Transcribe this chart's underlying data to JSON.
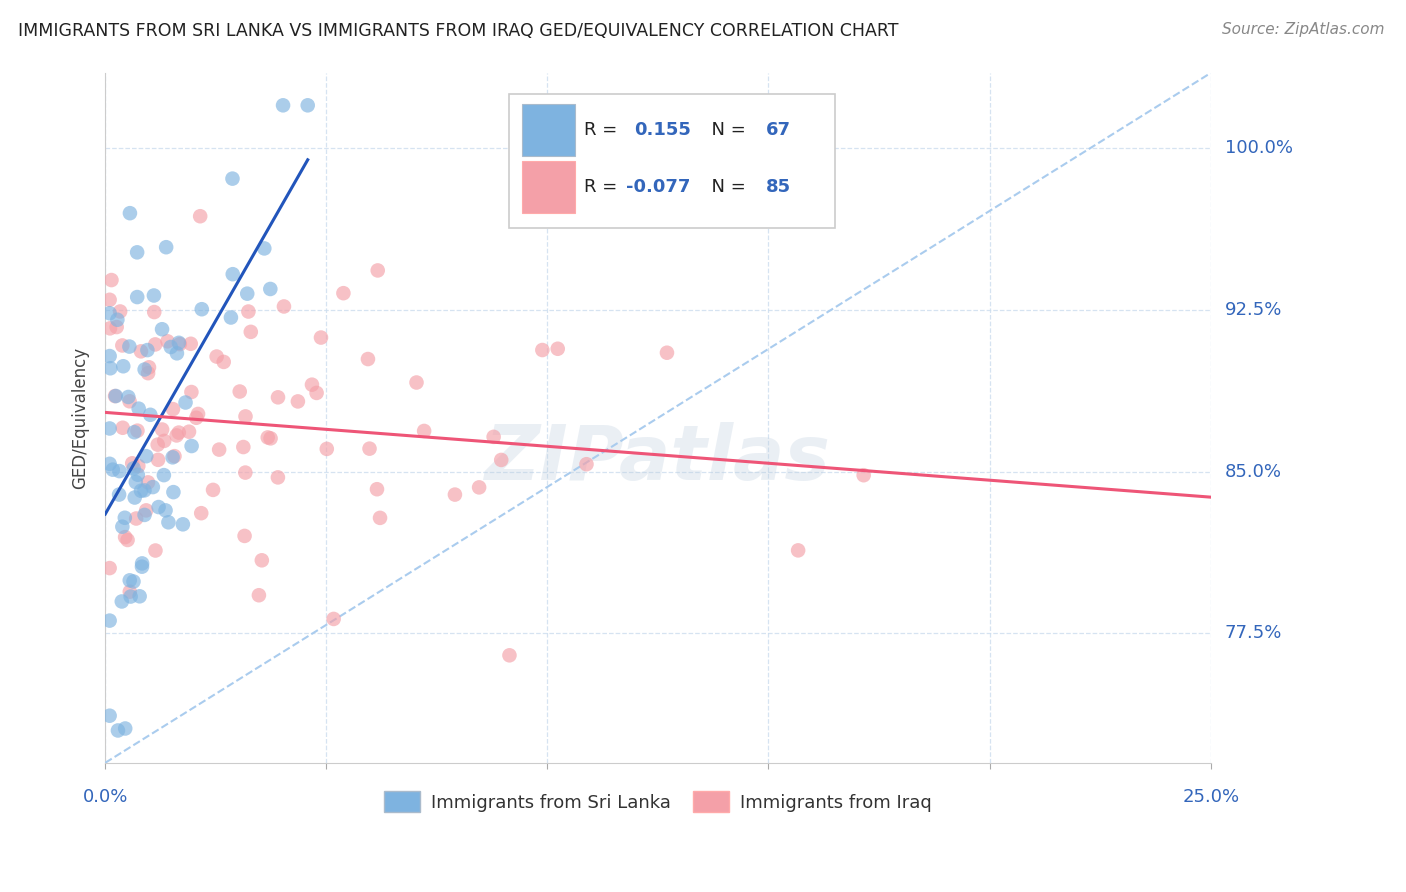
{
  "title": "IMMIGRANTS FROM SRI LANKA VS IMMIGRANTS FROM IRAQ GED/EQUIVALENCY CORRELATION CHART",
  "source": "Source: ZipAtlas.com",
  "ylabel": "GED/Equivalency",
  "r_sri_lanka": 0.155,
  "n_sri_lanka": 67,
  "r_iraq": -0.077,
  "n_iraq": 85,
  "sri_lanka_color": "#7EB3E0",
  "iraq_color": "#F4A0A8",
  "sri_lanka_line_color": "#2255BB",
  "iraq_line_color": "#EE5577",
  "dashed_line_color": "#AACCEE",
  "watermark_color": "#BBCCDD",
  "title_color": "#222222",
  "axis_label_color": "#3366BB",
  "source_color": "#888888",
  "legend_text_color": "#222222",
  "x_min": 0.0,
  "x_max": 0.25,
  "y_min": 0.715,
  "y_max": 1.035,
  "y_ticks": [
    0.775,
    0.85,
    0.925,
    1.0
  ],
  "y_tick_labels": [
    "77.5%",
    "85.0%",
    "92.5%",
    "100.0%"
  ],
  "x_tick_labels_left": "0.0%",
  "x_tick_labels_right": "25.0%",
  "grid_color": "#CCDDEE",
  "spine_color": "#CCCCCC"
}
